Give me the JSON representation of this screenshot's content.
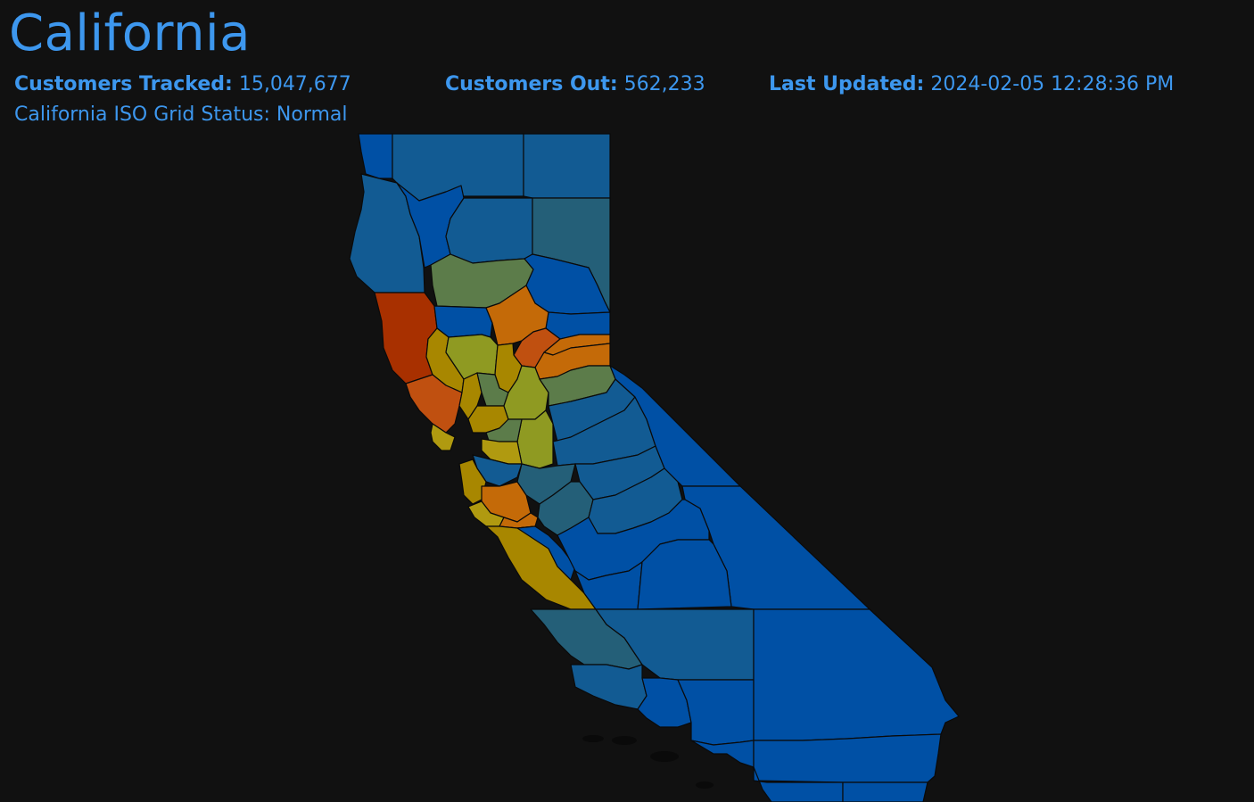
{
  "title": "California",
  "stats": {
    "tracked_label": "Customers Tracked:",
    "tracked_value": "15,047,677",
    "out_label": "Customers Out:",
    "out_value": "562,233",
    "updated_label": "Last Updated:",
    "updated_value": "2024-02-05 12:28:36 PM"
  },
  "grid_status": "California ISO Grid Status: Normal",
  "colors": {
    "background": "#111111",
    "text": "#3d97ee",
    "low": "#0050a5",
    "low_mid": "#125b93",
    "teal": "#245f78",
    "green": "#5c7c4a",
    "olive": "#8f9a22",
    "yellow": "#b09a10",
    "gold": "#a88700",
    "orange": "#c46a08",
    "dark_orange": "#c05010",
    "red": "#a83000"
  }
}
